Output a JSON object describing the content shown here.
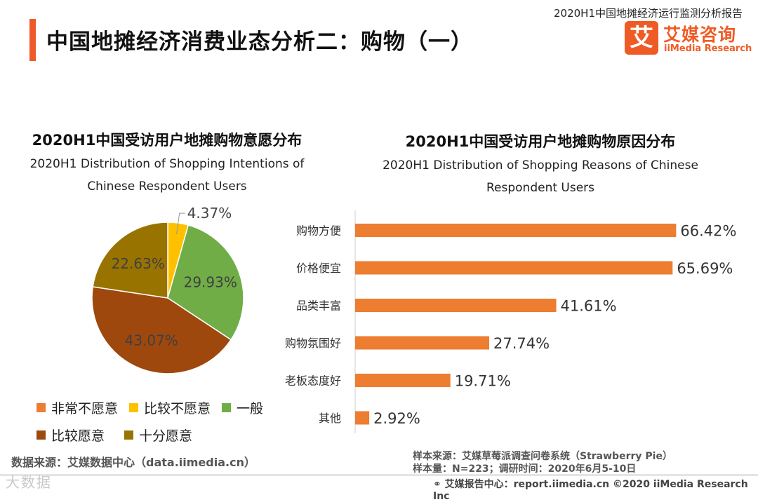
{
  "header": {
    "report_name": "2020H1中国地摊经济运行监测分析报告",
    "title": "中国地摊经济消费业态分析二：购物（一）",
    "logo_mark": "艾",
    "logo_cn": "艾媒咨询",
    "logo_en": "iiMedia Research"
  },
  "colors": {
    "accent": "#ee5a2a",
    "bar": "#ed7d31",
    "pie": [
      "#ed7d31",
      "#ffc000",
      "#70ad47",
      "#9e480e",
      "#997300"
    ]
  },
  "left_chart": {
    "title": "2020H1中国受访用户地摊购物意愿分布",
    "subtitle_line1": "2020H1 Distribution of Shopping Intentions of",
    "subtitle_line2": "Chinese Respondent Users"
  },
  "right_chart": {
    "title": "2020H1中国受访用户地摊购物原因分布",
    "subtitle_line1": "2020H1 Distribution of Shopping Reasons of Chinese",
    "subtitle_line2": "Respondent Users"
  },
  "chart_data": [
    {
      "type": "pie",
      "categories": [
        "非常不愿意",
        "比较不愿意",
        "一般",
        "比较愿意",
        "十分愿意"
      ],
      "values": [
        0,
        4.37,
        29.93,
        43.07,
        22.63
      ],
      "labels": [
        "",
        "4.37%",
        "29.93%",
        "43.07%",
        "22.63%"
      ],
      "title": "2020H1中国受访用户地摊购物意愿分布",
      "legend": "bottom"
    },
    {
      "type": "bar",
      "orientation": "horizontal",
      "categories": [
        "购物方便",
        "价格便宜",
        "品类丰富",
        "购物氛围好",
        "老板态度好",
        "其他"
      ],
      "values": [
        66.42,
        65.69,
        41.61,
        27.74,
        19.71,
        2.92
      ],
      "labels": [
        "66.42%",
        "65.69%",
        "41.61%",
        "27.74%",
        "19.71%",
        "2.92%"
      ],
      "title": "2020H1中国受访用户地摊购物原因分布",
      "xlim": [
        0,
        70
      ]
    }
  ],
  "sources": {
    "left": "数据来源：艾媒数据中心（data.iimedia.cn）",
    "sample_source": "样本来源：艾媒草莓派调查问卷系统（Strawberry Pie）",
    "sample_size": "样本量：N=223；调研时间：2020年6月5-10日"
  },
  "footer": {
    "text": "艾媒报告中心：report.iimedia.cn  ©2020  iiMedia Research  Inc",
    "watermark": "大数据"
  }
}
